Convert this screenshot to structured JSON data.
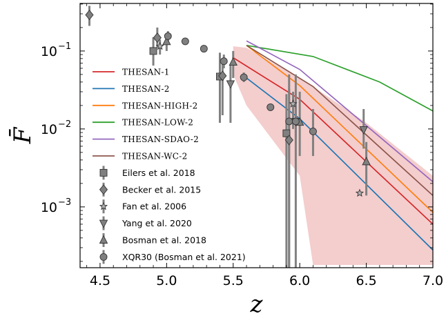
{
  "chart_data": {
    "type": "scatter",
    "xlabel": "z",
    "ylabel": "F̄",
    "xlim": [
      4.35,
      7.0
    ],
    "ylim_log10": [
      -3.78,
      -0.39
    ],
    "yscale": "log",
    "xticks": [
      4.5,
      5.0,
      5.5,
      6.0,
      6.5,
      7.0
    ],
    "xtick_labels": [
      "4.5",
      "5.0",
      "5.5",
      "6.0",
      "6.5",
      "7.0"
    ],
    "yticks": [
      0.1,
      0.01,
      0.001
    ],
    "ytick_labels": [
      "10",
      "10",
      "10"
    ],
    "ytick_exponents": [
      "−1",
      "−2",
      "−3"
    ],
    "legend_position": "lower-left",
    "band": {
      "color": "#f2c4c4",
      "x": [
        5.5,
        5.6,
        6.0,
        6.1,
        6.5,
        7.0
      ],
      "upper": [
        0.115,
        0.11,
        0.045,
        0.035,
        0.012,
        0.0025
      ],
      "lower": [
        0.05,
        0.02,
        0.0025,
        0.00018,
        0.00018,
        0.00018
      ]
    },
    "series": [
      {
        "name": "THESAN-1",
        "color": "#d62728",
        "x": [
          5.5,
          6.0,
          7.0
        ],
        "y": [
          0.082,
          0.024,
          0.0006
        ]
      },
      {
        "name": "THESAN-2",
        "color": "#1f77b4",
        "x": [
          5.6,
          6.0,
          7.0
        ],
        "y": [
          0.045,
          0.0135,
          0.00028
        ]
      },
      {
        "name": "THESAN-HIGH-2",
        "color": "#ff7f0e",
        "x": [
          5.6,
          6.0,
          7.0
        ],
        "y": [
          0.118,
          0.036,
          0.00085
        ]
      },
      {
        "name": "THESAN-LOW-2",
        "color": "#2ca02c",
        "x": [
          5.6,
          6.1,
          6.6,
          7.0
        ],
        "y": [
          0.118,
          0.085,
          0.04,
          0.017
        ]
      },
      {
        "name": "THESAN-SDAO-2",
        "color": "#9467bd",
        "x": [
          5.6,
          6.0,
          7.0
        ],
        "y": [
          0.135,
          0.058,
          0.0021
        ]
      },
      {
        "name": "THESAN-WC-2",
        "color": "#8c564b",
        "x": [
          5.6,
          6.1,
          7.0
        ],
        "y": [
          0.118,
          0.035,
          0.0014
        ]
      }
    ],
    "observations": [
      {
        "name": "Eilers et al. 2018",
        "marker": "square",
        "points": [
          {
            "x": 4.9,
            "y": 0.1,
            "lo": 0.065,
            "hi": 0.15
          },
          {
            "x": 5.4,
            "y": 0.047,
            "lo": 0.012,
            "hi": 0.095
          },
          {
            "x": 5.9,
            "y": 0.0088,
            "lo": 0.00015,
            "hi": 0.028
          }
        ]
      },
      {
        "name": "Becker et al. 2015",
        "marker": "diamond",
        "points": [
          {
            "x": 4.42,
            "y": 0.29,
            "lo": 0.21,
            "hi": 0.38
          },
          {
            "x": 4.93,
            "y": 0.148,
            "lo": 0.11,
            "hi": 0.2
          },
          {
            "x": 5.42,
            "y": 0.048,
            "lo": 0.015,
            "hi": 0.075
          },
          {
            "x": 5.92,
            "y": 0.0072,
            "lo": 0.00015,
            "hi": 0.033
          }
        ]
      },
      {
        "name": "Fan et al. 2006",
        "marker": "star",
        "points": [
          {
            "x": 4.95,
            "y": 0.115,
            "lo": 0.09,
            "hi": 0.14
          },
          {
            "x": 5.95,
            "y": 0.021,
            "lo": 0.01,
            "hi": 0.03
          },
          {
            "x": 6.45,
            "y": 0.0015,
            "lo": 0.0015,
            "hi": 0.0015
          }
        ]
      },
      {
        "name": "Yang et al. 2020",
        "marker": "triangle-down",
        "points": [
          {
            "x": 5.48,
            "y": 0.038,
            "lo": 0.012,
            "hi": 0.065
          },
          {
            "x": 5.97,
            "y": 0.0125,
            "lo": 0.0075,
            "hi": 0.02
          },
          {
            "x": 6.48,
            "y": 0.0098,
            "lo": 0.0056,
            "hi": 0.018
          }
        ]
      },
      {
        "name": "Bosman et al. 2018",
        "marker": "triangle-up",
        "points": [
          {
            "x": 5.0,
            "y": 0.132,
            "lo": 0.1,
            "hi": 0.16
          },
          {
            "x": 5.5,
            "y": 0.072,
            "lo": 0.045,
            "hi": 0.1
          },
          {
            "x": 6.0,
            "y": 0.0122,
            "lo": 0.0045,
            "hi": 0.03
          },
          {
            "x": 6.5,
            "y": 0.0038,
            "lo": 0.0014,
            "hi": 0.0068
          }
        ]
      },
      {
        "name": "XQR30 (Bosman et al. 2021)",
        "marker": "circle",
        "points": [
          {
            "x": 5.01,
            "y": 0.155,
            "lo": 0.13,
            "hi": 0.18
          },
          {
            "x": 5.14,
            "y": 0.133,
            "lo": 0.125,
            "hi": 0.142
          },
          {
            "x": 5.28,
            "y": 0.107,
            "lo": 0.1,
            "hi": 0.115
          },
          {
            "x": 5.43,
            "y": 0.074,
            "lo": 0.06,
            "hi": 0.09
          },
          {
            "x": 5.58,
            "y": 0.046,
            "lo": 0.04,
            "hi": 0.053
          },
          {
            "x": 5.78,
            "y": 0.019,
            "lo": 0.017,
            "hi": 0.021
          },
          {
            "x": 5.92,
            "y": 0.0125,
            "lo": 0.0001,
            "hi": 0.05
          },
          {
            "x": 5.97,
            "y": 0.0125,
            "lo": 0.0001,
            "hi": 0.05
          },
          {
            "x": 6.1,
            "y": 0.0093,
            "lo": 0.0045,
            "hi": 0.018
          }
        ]
      }
    ]
  }
}
